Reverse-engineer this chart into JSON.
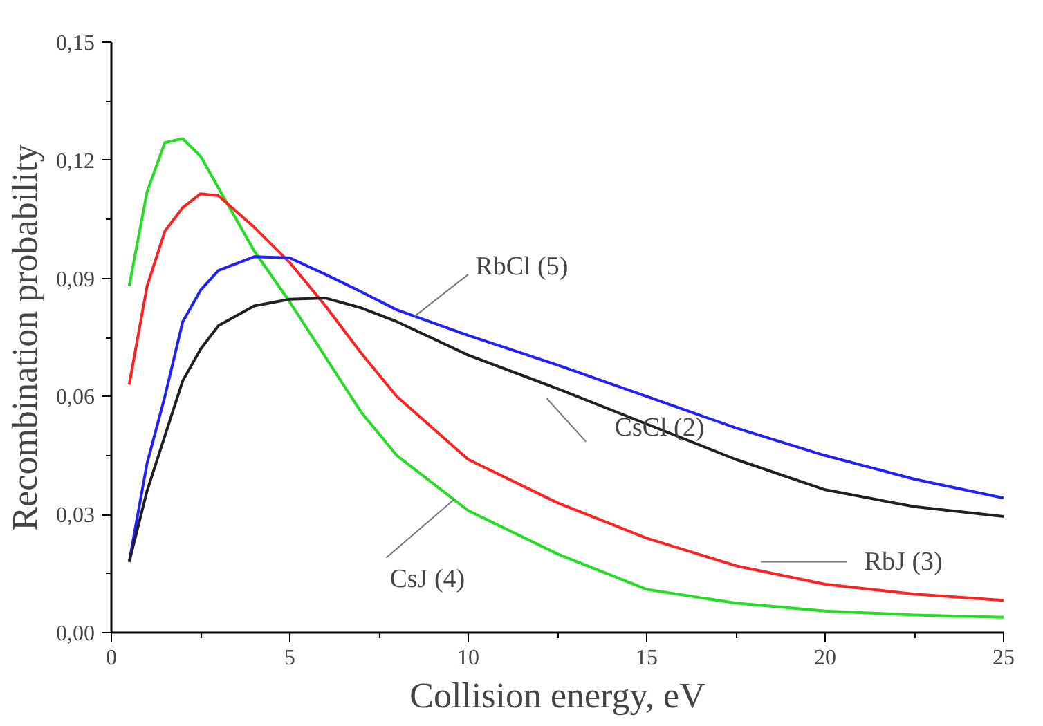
{
  "chart_data": {
    "type": "line",
    "xlabel": "Collision energy, eV",
    "ylabel": "Recombination probability",
    "x": [
      0.5,
      1,
      1.5,
      2,
      2.5,
      3,
      4,
      5,
      6,
      7,
      8,
      10,
      12.5,
      15,
      17.5,
      20,
      22.5,
      25
    ],
    "series": [
      {
        "name": "CsJ (4)",
        "color": "#22dd22",
        "values": [
          0.088,
          0.112,
          0.1245,
          0.1255,
          0.121,
          0.113,
          0.097,
          0.084,
          0.07,
          0.056,
          0.045,
          0.031,
          0.02,
          0.011,
          0.0075,
          0.0055,
          0.0045,
          0.0039
        ]
      },
      {
        "name": "RbJ (3)",
        "color": "#ff2020",
        "values": [
          0.063,
          0.088,
          0.102,
          0.108,
          0.1115,
          0.111,
          0.103,
          0.094,
          0.083,
          0.071,
          0.06,
          0.044,
          0.033,
          0.024,
          0.017,
          0.0123,
          0.0098,
          0.0082
        ]
      },
      {
        "name": "RbCl (5)",
        "color": "#2020ff",
        "values": [
          0.018,
          0.043,
          0.06,
          0.079,
          0.087,
          0.092,
          0.0955,
          0.0952,
          0.091,
          0.0866,
          0.082,
          0.0755,
          0.068,
          0.06,
          0.052,
          0.045,
          0.039,
          0.0342
        ]
      },
      {
        "name": "CsCl (2)",
        "color": "#202020",
        "values": [
          0.018,
          0.036,
          0.05,
          0.064,
          0.072,
          0.078,
          0.083,
          0.0847,
          0.085,
          0.0825,
          0.079,
          0.0705,
          0.062,
          0.053,
          0.044,
          0.0363,
          0.032,
          0.0295
        ]
      }
    ],
    "xlim": [
      0,
      25
    ],
    "xticks": [
      0,
      5,
      10,
      15,
      20,
      25
    ],
    "ylim": [
      0,
      0.15
    ],
    "yticks": [
      {
        "value": 0,
        "label": "0,00"
      },
      {
        "value": 0.03,
        "label": "0,03"
      },
      {
        "value": 0.06,
        "label": "0,06"
      },
      {
        "value": 0.09,
        "label": "0,09"
      },
      {
        "value": 0.12,
        "label": "0,12"
      },
      {
        "value": 0.15,
        "label": "0,15"
      }
    ],
    "grid": false,
    "marker": "none",
    "line_style": "solid"
  }
}
